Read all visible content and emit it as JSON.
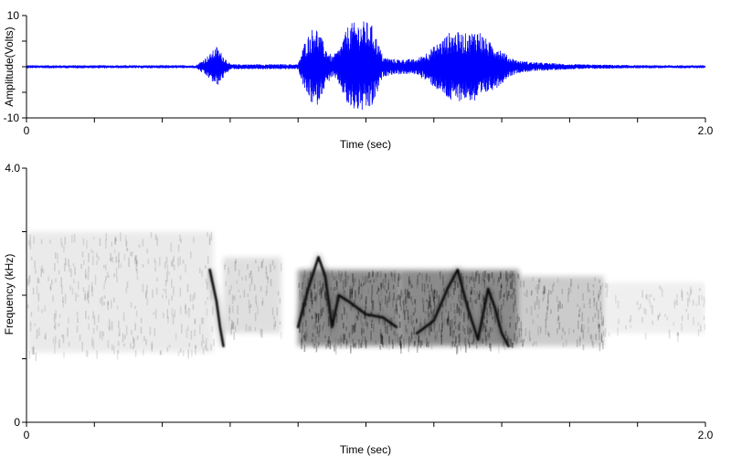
{
  "chart_data": [
    {
      "type": "line",
      "title": "",
      "xlabel": "Time (sec)",
      "ylabel": "Amplitude(Volts)",
      "xlim": [
        0,
        2.0
      ],
      "ylim": [
        -10,
        10
      ],
      "x_tick_labels": [
        "0",
        "2.0"
      ],
      "y_tick_labels": [
        "10",
        "-10"
      ],
      "grid": false,
      "series": [
        {
          "color": "#0000ff",
          "envelope_x": [
            0,
            0.5,
            0.54,
            0.56,
            0.6,
            0.8,
            0.82,
            0.85,
            0.88,
            0.9,
            0.92,
            0.95,
            1.0,
            1.02,
            1.05,
            1.08,
            1.1,
            1.15,
            1.2,
            1.25,
            1.3,
            1.33,
            1.36,
            1.39,
            1.42,
            1.45,
            1.48,
            1.52,
            1.6,
            1.8,
            2.0
          ],
          "envelope_amplitude": [
            0.3,
            0.3,
            2.5,
            4.0,
            0.5,
            0.5,
            5.0,
            8.5,
            4.0,
            2.0,
            3.5,
            8.5,
            9.0,
            8.0,
            2.0,
            1.5,
            1.5,
            1.5,
            4.0,
            7.0,
            6.5,
            7.5,
            5.0,
            4.0,
            2.0,
            1.2,
            1.0,
            0.8,
            0.5,
            0.3,
            0.3
          ]
        }
      ]
    },
    {
      "type": "heatmap",
      "title": "",
      "xlabel": "Time (sec)",
      "ylabel": "Frequency (kHz)",
      "xlim": [
        0,
        2.0
      ],
      "ylim": [
        0,
        4.0
      ],
      "x_tick_labels": [
        "0",
        "2.0"
      ],
      "y_tick_labels": [
        "4.0",
        "0"
      ],
      "grid": false,
      "colormap": [
        "#ffffff",
        "#000000"
      ],
      "harmonic_traces": [
        {
          "x": [
            0.54,
            0.56,
            0.57,
            0.58
          ],
          "y_khz": [
            2.4,
            1.9,
            1.5,
            1.2
          ]
        },
        {
          "x": [
            0.8,
            0.83,
            0.86,
            0.88,
            0.9,
            0.92,
            0.95,
            1.0,
            1.05,
            1.09
          ],
          "y_khz": [
            1.5,
            2.1,
            2.6,
            2.3,
            1.5,
            2.0,
            1.9,
            1.7,
            1.65,
            1.5
          ]
        },
        {
          "x": [
            1.15,
            1.2,
            1.24,
            1.27,
            1.3,
            1.33,
            1.36,
            1.38,
            1.4,
            1.42
          ],
          "y_khz": [
            1.4,
            1.6,
            2.1,
            2.4,
            1.8,
            1.3,
            2.1,
            1.8,
            1.4,
            1.2
          ]
        }
      ],
      "energy_bands": [
        {
          "x0": 0.8,
          "x1": 1.1,
          "y0_khz": 1.2,
          "y1_khz": 2.4,
          "level": 0.45
        },
        {
          "x0": 1.1,
          "x1": 1.45,
          "y0_khz": 1.2,
          "y1_khz": 2.4,
          "level": 0.45
        },
        {
          "x0": 1.45,
          "x1": 1.7,
          "y0_khz": 1.2,
          "y1_khz": 2.3,
          "level": 0.2
        },
        {
          "x0": 0.58,
          "x1": 0.75,
          "y0_khz": 1.4,
          "y1_khz": 2.6,
          "level": 0.12
        },
        {
          "x0": 0.0,
          "x1": 0.55,
          "y0_khz": 1.1,
          "y1_khz": 3.0,
          "level": 0.08
        },
        {
          "x0": 1.7,
          "x1": 2.0,
          "y0_khz": 1.4,
          "y1_khz": 2.2,
          "level": 0.06
        }
      ]
    }
  ]
}
